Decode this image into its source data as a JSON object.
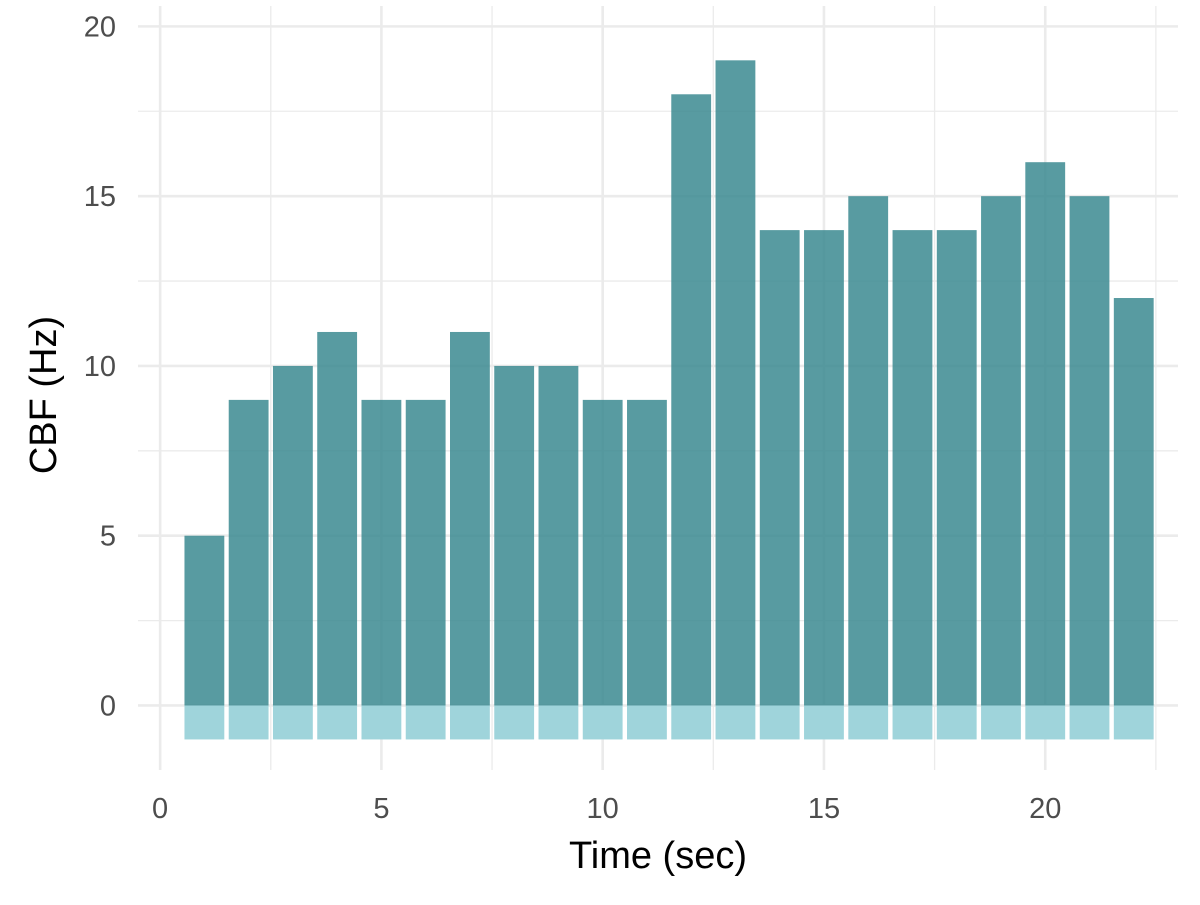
{
  "chart_data": {
    "type": "bar",
    "title": "",
    "xlabel": "Time (sec)",
    "ylabel": "CBF (Hz)",
    "x": [
      1,
      2,
      3,
      4,
      5,
      6,
      7,
      8,
      9,
      10,
      11,
      12,
      13,
      14,
      15,
      16,
      17,
      18,
      19,
      20,
      21,
      22
    ],
    "values": [
      5,
      9,
      10,
      11,
      9,
      9,
      11,
      10,
      10,
      9,
      9,
      18,
      19,
      14,
      14,
      15,
      14,
      14,
      15,
      16,
      15,
      12
    ],
    "baseline_band": {
      "from": -1,
      "to": 0
    },
    "xlim": [
      -0.5,
      23.0
    ],
    "ylim": [
      -1.9,
      20.6
    ],
    "x_ticks": [
      0,
      5,
      10,
      15,
      20
    ],
    "y_ticks": [
      0,
      5,
      10,
      15,
      20
    ],
    "x_tick_labels": [
      "0",
      "5",
      "10",
      "15",
      "20"
    ],
    "y_tick_labels": [
      "0",
      "5",
      "10",
      "15",
      "20"
    ],
    "grid": true,
    "bar_color": "#3b8a91",
    "bar_opacity": 0.85,
    "baseline_color": "#9fd4db"
  }
}
